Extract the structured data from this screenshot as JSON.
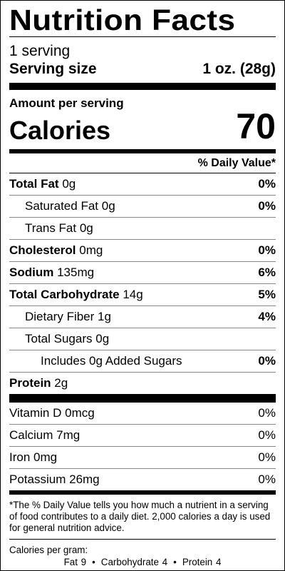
{
  "title": "Nutrition Facts",
  "servings": "1 serving",
  "serving_size": {
    "label": "Serving size",
    "value": "1 oz. (28g)"
  },
  "amount_per_serving": "Amount per serving",
  "calories": {
    "label": "Calories",
    "value": "70"
  },
  "daily_value_header": "% Daily Value*",
  "nutrients": [
    {
      "name": "Total Fat",
      "amount": "0g",
      "dv": "0%",
      "bold": true,
      "indent": 0
    },
    {
      "name": "Saturated Fat",
      "amount": "0g",
      "dv": "0%",
      "bold": false,
      "indent": 1
    },
    {
      "name": "Trans Fat",
      "amount": "0g",
      "dv": "",
      "bold": false,
      "indent": 1
    },
    {
      "name": "Cholesterol",
      "amount": "0mg",
      "dv": "0%",
      "bold": true,
      "indent": 0
    },
    {
      "name": "Sodium",
      "amount": "135mg",
      "dv": "6%",
      "bold": true,
      "indent": 0
    },
    {
      "name": "Total Carbohydrate",
      "amount": "14g",
      "dv": "5%",
      "bold": true,
      "indent": 0
    },
    {
      "name": "Dietary Fiber",
      "amount": "1g",
      "dv": "4%",
      "bold": false,
      "indent": 1
    },
    {
      "name": "Total Sugars",
      "amount": "0g",
      "dv": "",
      "bold": false,
      "indent": 1
    },
    {
      "name": "Includes 0g Added Sugars",
      "amount": "",
      "dv": "0%",
      "bold": false,
      "indent": 2
    },
    {
      "name": "Protein",
      "amount": "2g",
      "dv": "",
      "bold": true,
      "indent": 0
    }
  ],
  "vitamins": [
    {
      "name": "Vitamin D",
      "amount": "0mcg",
      "dv": "0%"
    },
    {
      "name": "Calcium",
      "amount": "7mg",
      "dv": "0%"
    },
    {
      "name": "Iron",
      "amount": "0mg",
      "dv": "0%"
    },
    {
      "name": "Potassium",
      "amount": "26mg",
      "dv": "0%"
    }
  ],
  "footnote": "*The % Daily Value tells you how much a nutrient in a serving of food contributes to a daily diet. 2,000 calories a day is used for general nutrition advice.",
  "calories_per_gram": {
    "label": "Calories per gram:",
    "fat": "Fat 9",
    "carbohydrate": "Carbohydrate 4",
    "protein": "Protein 4",
    "separator": "•"
  }
}
